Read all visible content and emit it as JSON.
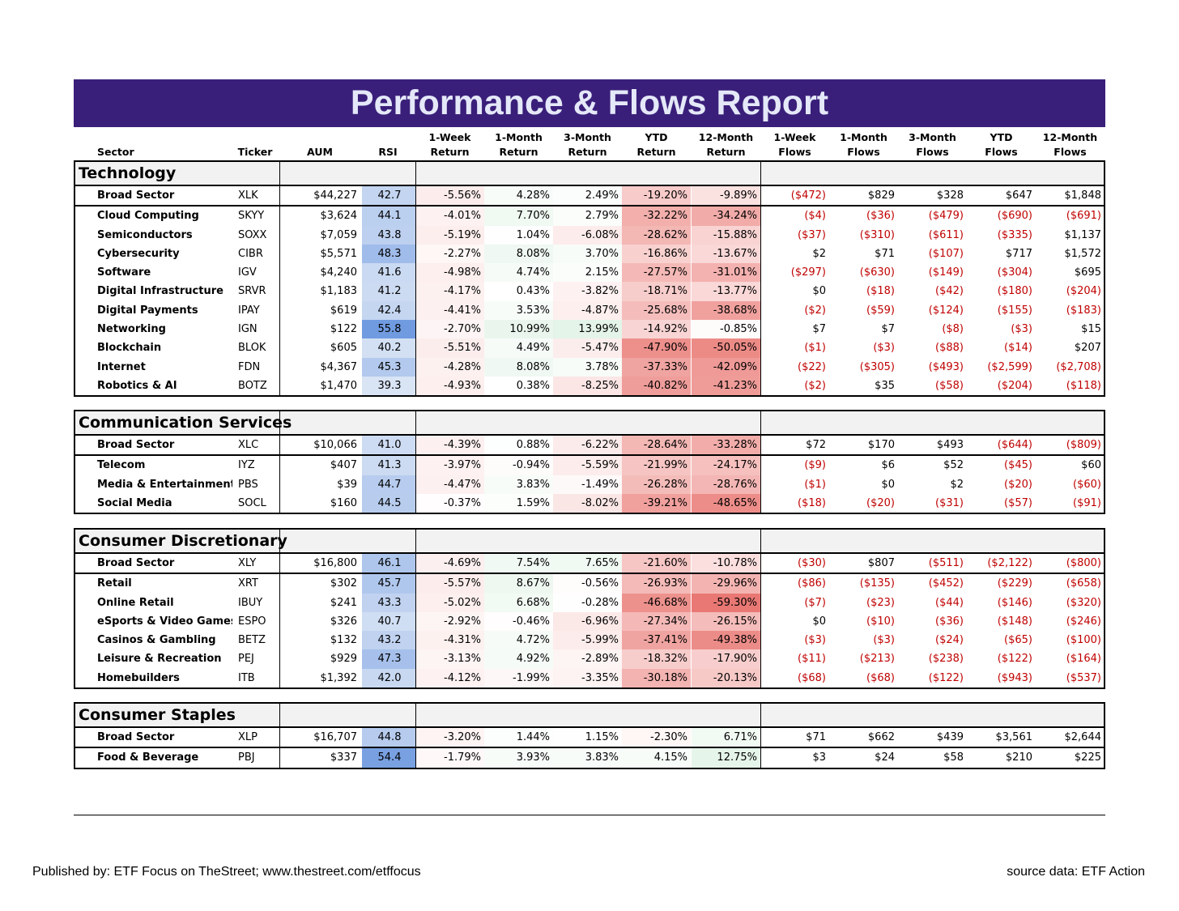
{
  "title": "Performance & Flows Report",
  "headers": [
    {
      "key": "sector",
      "lines": [
        "Sector"
      ]
    },
    {
      "key": "ticker",
      "lines": [
        "Ticker"
      ]
    },
    {
      "key": "aum",
      "lines": [
        "AUM"
      ]
    },
    {
      "key": "rsi",
      "lines": [
        "RSI"
      ]
    },
    {
      "key": "r1w",
      "lines": [
        "1-Week",
        "Return"
      ]
    },
    {
      "key": "r1m",
      "lines": [
        "1-Month",
        "Return"
      ]
    },
    {
      "key": "r3m",
      "lines": [
        "3-Month",
        "Return"
      ]
    },
    {
      "key": "rytd",
      "lines": [
        "YTD",
        "Return"
      ]
    },
    {
      "key": "r12m",
      "lines": [
        "12-Month",
        "Return"
      ]
    },
    {
      "key": "f1w",
      "lines": [
        "1-Week",
        "Flows"
      ]
    },
    {
      "key": "f1m",
      "lines": [
        "1-Month",
        "Flows"
      ]
    },
    {
      "key": "f3m",
      "lines": [
        "3-Month",
        "Flows"
      ]
    },
    {
      "key": "fytd",
      "lines": [
        "YTD",
        "Flows"
      ]
    },
    {
      "key": "f12m",
      "lines": [
        "12-Month",
        "Flows"
      ]
    }
  ],
  "colors": {
    "title_bg": "#3a1f7a",
    "title_text": "#e4e8f8",
    "negative_text": "#c00000",
    "rsi_base": "#dbe5f5",
    "rsi_high": "#6f9ae0",
    "return_negative": "#e8706b",
    "return_positive": "#63be7b"
  },
  "sections": [
    {
      "name": "Technology",
      "rows": [
        {
          "sector": "Broad Sector",
          "ticker": "XLK",
          "aum": "$44,227",
          "rsi": "42.7",
          "returns": [
            "-5.56%",
            "4.28%",
            "2.49%",
            "-19.20%",
            "-9.89%"
          ],
          "flows": [
            "($472)",
            "$829",
            "$328",
            "$647",
            "$1,848"
          ]
        },
        {
          "sector": "Cloud Computing",
          "ticker": "SKYY",
          "aum": "$3,624",
          "rsi": "44.1",
          "returns": [
            "-4.01%",
            "7.70%",
            "2.79%",
            "-32.22%",
            "-34.24%"
          ],
          "flows": [
            "($4)",
            "($36)",
            "($479)",
            "($690)",
            "($691)"
          ]
        },
        {
          "sector": "Semiconductors",
          "ticker": "SOXX",
          "aum": "$7,059",
          "rsi": "43.8",
          "returns": [
            "-5.19%",
            "1.04%",
            "-6.08%",
            "-28.62%",
            "-15.88%"
          ],
          "flows": [
            "($37)",
            "($310)",
            "($611)",
            "($335)",
            "$1,137"
          ]
        },
        {
          "sector": "Cybersecurity",
          "ticker": "CIBR",
          "aum": "$5,571",
          "rsi": "48.3",
          "returns": [
            "-2.27%",
            "8.08%",
            "3.70%",
            "-16.86%",
            "-13.67%"
          ],
          "flows": [
            "$2",
            "$71",
            "($107)",
            "$717",
            "$1,572"
          ]
        },
        {
          "sector": "Software",
          "ticker": "IGV",
          "aum": "$4,240",
          "rsi": "41.6",
          "returns": [
            "-4.98%",
            "4.74%",
            "2.15%",
            "-27.57%",
            "-31.01%"
          ],
          "flows": [
            "($297)",
            "($630)",
            "($149)",
            "($304)",
            "$695"
          ]
        },
        {
          "sector": "Digital Infrastructure",
          "ticker": "SRVR",
          "aum": "$1,183",
          "rsi": "41.2",
          "returns": [
            "-4.17%",
            "0.43%",
            "-3.82%",
            "-18.71%",
            "-13.77%"
          ],
          "flows": [
            "$0",
            "($18)",
            "($42)",
            "($180)",
            "($204)"
          ]
        },
        {
          "sector": "Digital Payments",
          "ticker": "IPAY",
          "aum": "$619",
          "rsi": "42.4",
          "returns": [
            "-4.41%",
            "3.53%",
            "-4.87%",
            "-25.68%",
            "-38.68%"
          ],
          "flows": [
            "($2)",
            "($59)",
            "($124)",
            "($155)",
            "($183)"
          ]
        },
        {
          "sector": "Networking",
          "ticker": "IGN",
          "aum": "$122",
          "rsi": "55.8",
          "returns": [
            "-2.70%",
            "10.99%",
            "13.99%",
            "-14.92%",
            "-0.85%"
          ],
          "flows": [
            "$7",
            "$7",
            "($8)",
            "($3)",
            "$15"
          ]
        },
        {
          "sector": "Blockchain",
          "ticker": "BLOK",
          "aum": "$605",
          "rsi": "40.2",
          "returns": [
            "-5.51%",
            "4.49%",
            "-5.47%",
            "-47.90%",
            "-50.05%"
          ],
          "flows": [
            "($1)",
            "($3)",
            "($88)",
            "($14)",
            "$207"
          ]
        },
        {
          "sector": "Internet",
          "ticker": "FDN",
          "aum": "$4,367",
          "rsi": "45.3",
          "returns": [
            "-4.28%",
            "8.08%",
            "3.78%",
            "-37.33%",
            "-42.09%"
          ],
          "flows": [
            "($22)",
            "($305)",
            "($493)",
            "($2,599)",
            "($2,708)"
          ]
        },
        {
          "sector": "Robotics & AI",
          "ticker": "BOTZ",
          "aum": "$1,470",
          "rsi": "39.3",
          "returns": [
            "-4.93%",
            "0.38%",
            "-8.25%",
            "-40.82%",
            "-41.23%"
          ],
          "flows": [
            "($2)",
            "$35",
            "($58)",
            "($204)",
            "($118)"
          ]
        }
      ]
    },
    {
      "name": "Communication Services",
      "rows": [
        {
          "sector": "Broad Sector",
          "ticker": "XLC",
          "aum": "$10,066",
          "rsi": "41.0",
          "returns": [
            "-4.39%",
            "0.88%",
            "-6.22%",
            "-28.64%",
            "-33.28%"
          ],
          "flows": [
            "$72",
            "$170",
            "$493",
            "($644)",
            "($809)"
          ]
        },
        {
          "sector": "Telecom",
          "ticker": "IYZ",
          "aum": "$407",
          "rsi": "41.3",
          "returns": [
            "-3.97%",
            "-0.94%",
            "-5.59%",
            "-21.99%",
            "-24.17%"
          ],
          "flows": [
            "($9)",
            "$6",
            "$52",
            "($45)",
            "$60"
          ]
        },
        {
          "sector": "Media & Entertainment",
          "ticker": "PBS",
          "aum": "$39",
          "rsi": "44.7",
          "returns": [
            "-4.47%",
            "3.83%",
            "-1.49%",
            "-26.28%",
            "-28.76%"
          ],
          "flows": [
            "($1)",
            "$0",
            "$2",
            "($20)",
            "($60)"
          ]
        },
        {
          "sector": "Social Media",
          "ticker": "SOCL",
          "aum": "$160",
          "rsi": "44.5",
          "returns": [
            "-0.37%",
            "1.59%",
            "-8.02%",
            "-39.21%",
            "-48.65%"
          ],
          "flows": [
            "($18)",
            "($20)",
            "($31)",
            "($57)",
            "($91)"
          ]
        }
      ]
    },
    {
      "name": "Consumer Discretionary",
      "rows": [
        {
          "sector": "Broad Sector",
          "ticker": "XLY",
          "aum": "$16,800",
          "rsi": "46.1",
          "returns": [
            "-4.69%",
            "7.54%",
            "7.65%",
            "-21.60%",
            "-10.78%"
          ],
          "flows": [
            "($30)",
            "$807",
            "($511)",
            "($2,122)",
            "($800)"
          ]
        },
        {
          "sector": "Retail",
          "ticker": "XRT",
          "aum": "$302",
          "rsi": "45.7",
          "returns": [
            "-5.57%",
            "8.67%",
            "-0.56%",
            "-26.93%",
            "-29.96%"
          ],
          "flows": [
            "($86)",
            "($135)",
            "($452)",
            "($229)",
            "($658)"
          ]
        },
        {
          "sector": "Online Retail",
          "ticker": "IBUY",
          "aum": "$241",
          "rsi": "43.3",
          "returns": [
            "-5.02%",
            "6.68%",
            "-0.28%",
            "-46.68%",
            "-59.30%"
          ],
          "flows": [
            "($7)",
            "($23)",
            "($44)",
            "($146)",
            "($320)"
          ]
        },
        {
          "sector": "eSports & Video Games",
          "ticker": "ESPO",
          "aum": "$326",
          "rsi": "40.7",
          "returns": [
            "-2.92%",
            "-0.46%",
            "-6.96%",
            "-27.34%",
            "-26.15%"
          ],
          "flows": [
            "$0",
            "($10)",
            "($36)",
            "($148)",
            "($246)"
          ]
        },
        {
          "sector": "Casinos & Gambling",
          "ticker": "BETZ",
          "aum": "$132",
          "rsi": "43.2",
          "returns": [
            "-4.31%",
            "4.72%",
            "-5.99%",
            "-37.41%",
            "-49.38%"
          ],
          "flows": [
            "($3)",
            "($3)",
            "($24)",
            "($65)",
            "($100)"
          ]
        },
        {
          "sector": "Leisure & Recreation",
          "ticker": "PEJ",
          "aum": "$929",
          "rsi": "47.3",
          "returns": [
            "-3.13%",
            "4.92%",
            "-2.89%",
            "-18.32%",
            "-17.90%"
          ],
          "flows": [
            "($11)",
            "($213)",
            "($238)",
            "($122)",
            "($164)"
          ]
        },
        {
          "sector": "Homebuilders",
          "ticker": "ITB",
          "aum": "$1,392",
          "rsi": "42.0",
          "returns": [
            "-4.12%",
            "-1.99%",
            "-3.35%",
            "-30.18%",
            "-20.13%"
          ],
          "flows": [
            "($68)",
            "($68)",
            "($122)",
            "($943)",
            "($537)"
          ]
        }
      ]
    },
    {
      "name": "Consumer Staples",
      "rows": [
        {
          "sector": "Broad Sector",
          "ticker": "XLP",
          "aum": "$16,707",
          "rsi": "44.8",
          "returns": [
            "-3.20%",
            "1.44%",
            "1.15%",
            "-2.30%",
            "6.71%"
          ],
          "flows": [
            "$71",
            "$662",
            "$439",
            "$3,561",
            "$2,644"
          ]
        },
        {
          "sector": "Food & Beverage",
          "ticker": "PBJ",
          "aum": "$337",
          "rsi": "54.4",
          "returns": [
            "-1.79%",
            "3.93%",
            "3.83%",
            "4.15%",
            "12.75%"
          ],
          "flows": [
            "$3",
            "$24",
            "$58",
            "$210",
            "$225"
          ]
        }
      ]
    }
  ],
  "footer": {
    "published": "Published by: ETF Focus on TheStreet; www.thestreet.com/etffocus",
    "source": "source data: ETF Action"
  }
}
